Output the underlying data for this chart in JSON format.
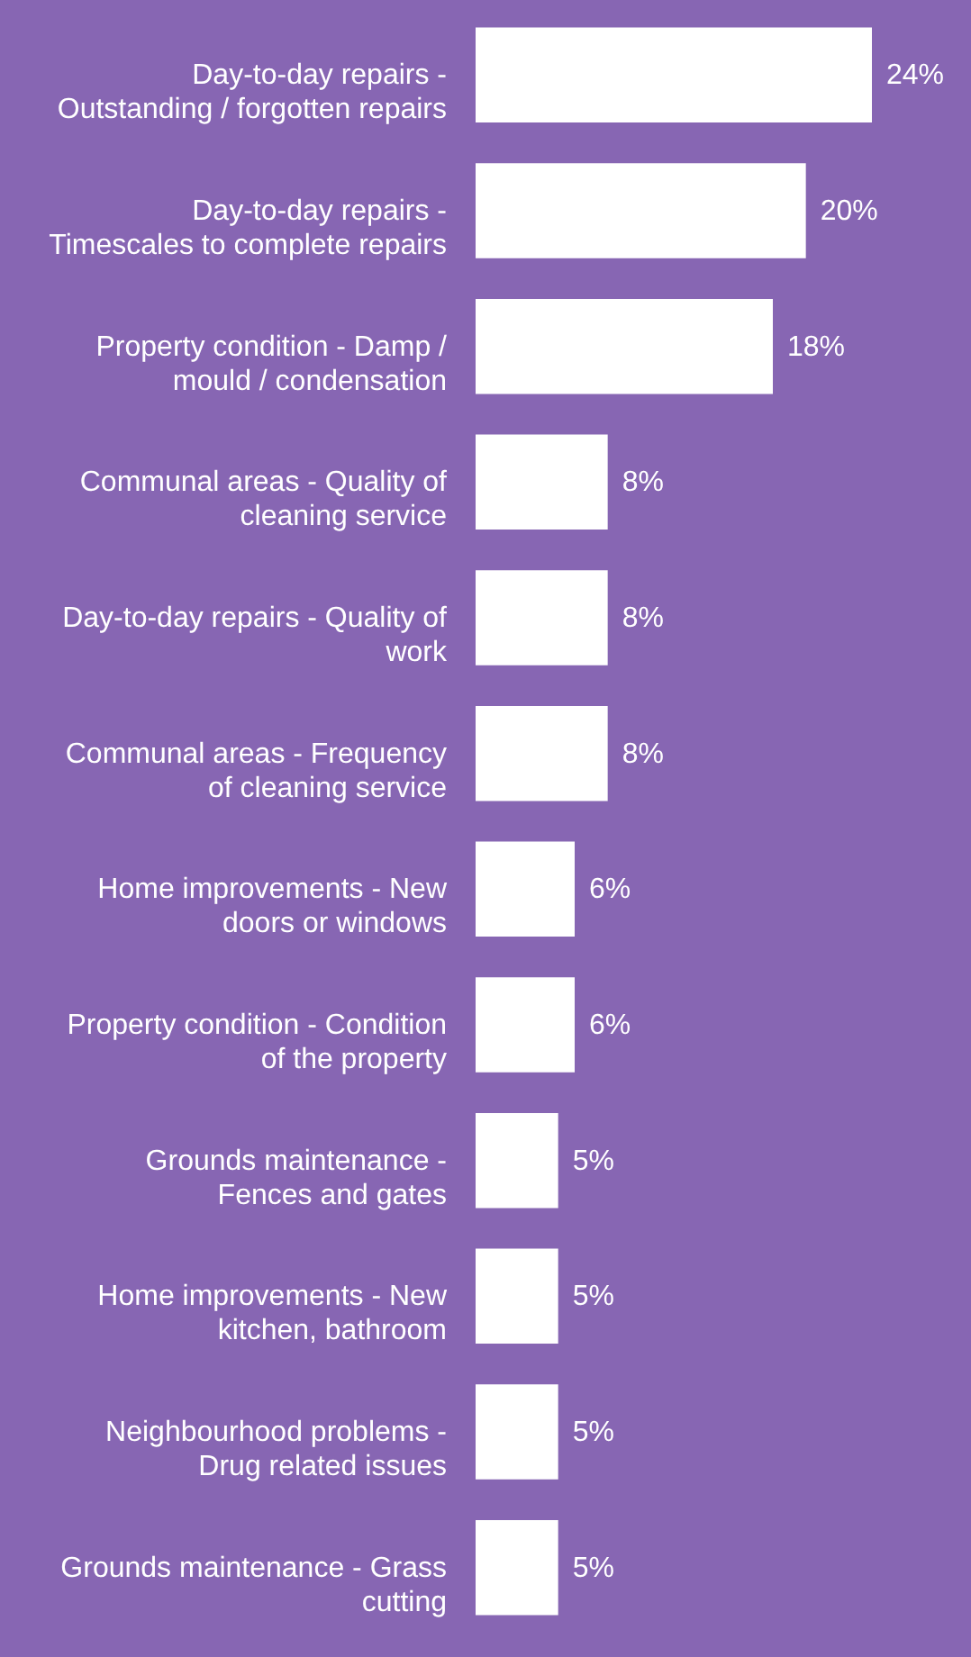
{
  "chart_data": {
    "type": "bar",
    "orientation": "horizontal",
    "categories": [
      "Day-to-day repairs - Outstanding / forgotten repairs",
      "Day-to-day repairs - Timescales to complete repairs",
      "Property condition - Damp / mould / condensation",
      "Communal areas - Quality of cleaning service",
      "Day-to-day repairs - Quality of work",
      "Communal areas - Frequency of cleaning service",
      "Home improvements - New doors or windows",
      "Property condition - Condition of the property",
      "Grounds maintenance - Fences and gates",
      "Home improvements - New kitchen, bathroom",
      "Neighbourhood problems - Drug related issues",
      "Grounds maintenance - Grass cutting"
    ],
    "values": [
      24,
      20,
      18,
      8,
      8,
      8,
      6,
      6,
      5,
      5,
      5,
      5
    ],
    "value_labels": [
      "24%",
      "20%",
      "18%",
      "8%",
      "8%",
      "8%",
      "6%",
      "6%",
      "5%",
      "5%",
      "5%",
      "5%"
    ],
    "color": "#ffffff"
  }
}
